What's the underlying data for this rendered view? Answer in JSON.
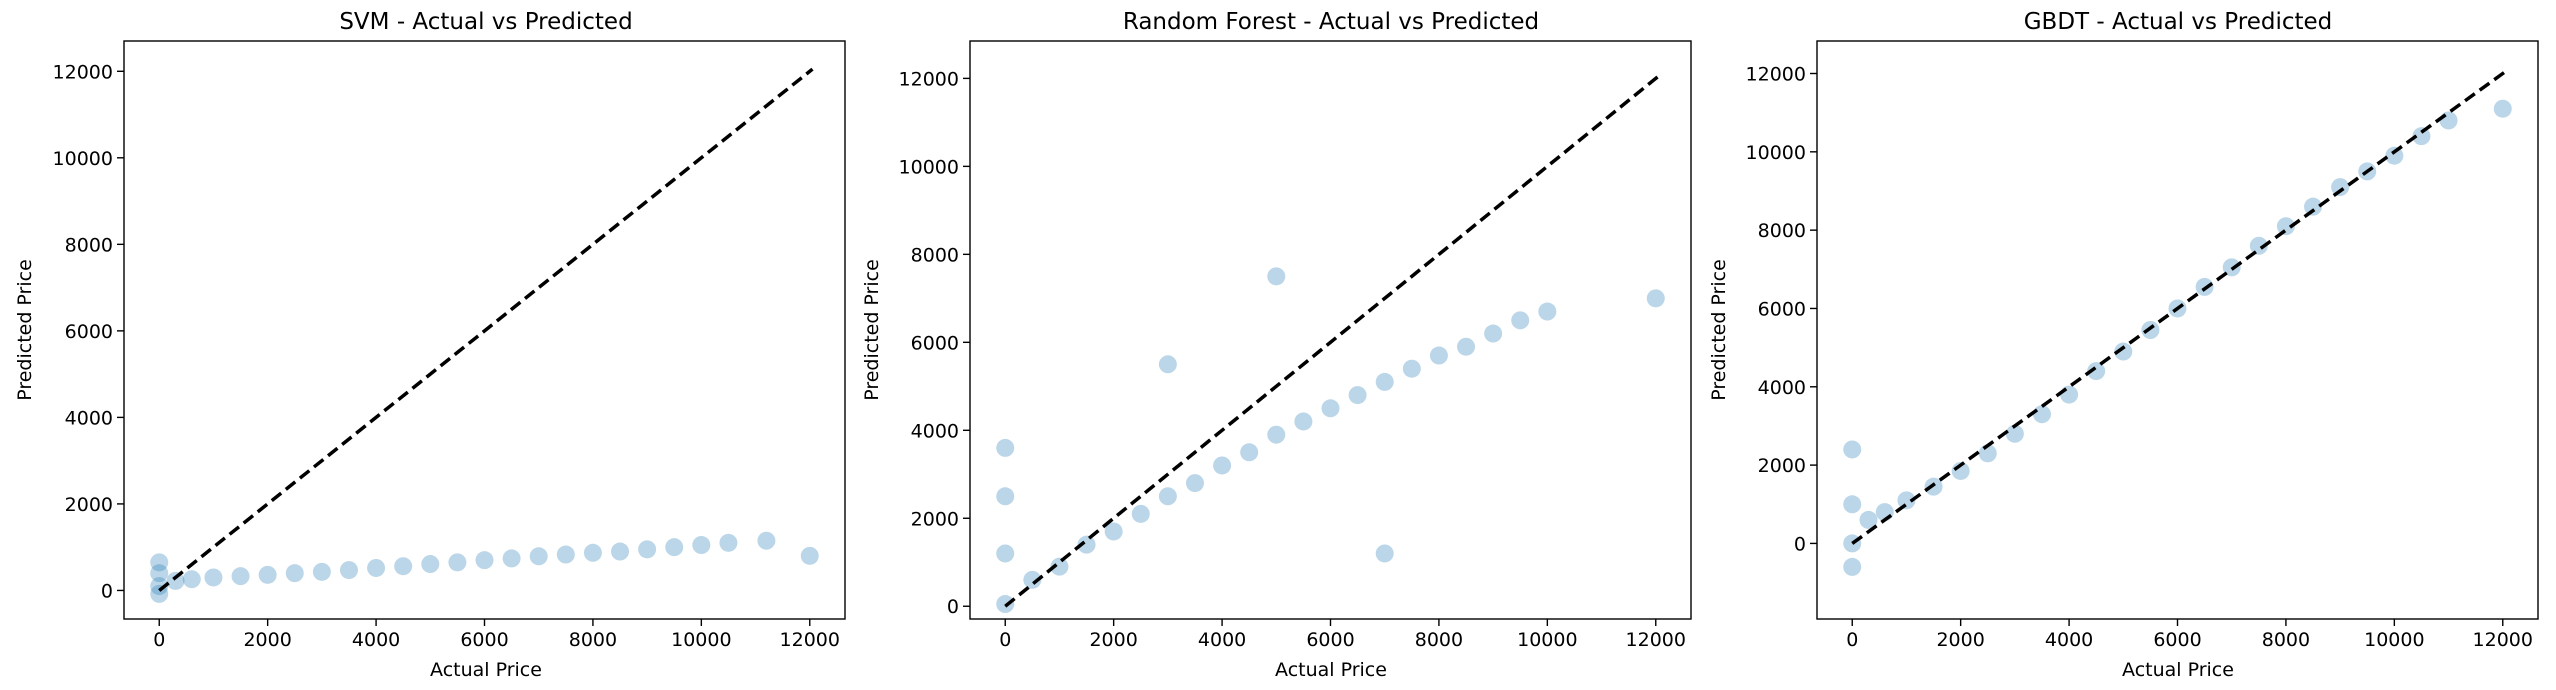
{
  "chart_data": [
    {
      "type": "scatter",
      "title": "SVM - Actual vs Predicted",
      "xlabel": "Actual Price",
      "ylabel": "Predicted Price",
      "xlim": [
        -650,
        12650
      ],
      "ylim": [
        -660,
        12700
      ],
      "xticks": [
        0,
        2000,
        4000,
        6000,
        8000,
        10000,
        12000
      ],
      "yticks": [
        0,
        2000,
        4000,
        6000,
        8000,
        10000,
        12000
      ],
      "reference_line": {
        "from": 0,
        "to": 12050,
        "style": "dashed",
        "color": "#000000"
      },
      "point_color": "#1f77b4",
      "point_alpha": 0.05,
      "series": [
        {
          "values": [
            {
              "x": 0,
              "y": 100
            },
            {
              "x": 0,
              "y": 400
            },
            {
              "x": 0,
              "y": 650
            },
            {
              "x": 0,
              "y": -80
            },
            {
              "x": 300,
              "y": 220
            },
            {
              "x": 600,
              "y": 260
            },
            {
              "x": 1000,
              "y": 300
            },
            {
              "x": 1500,
              "y": 330
            },
            {
              "x": 2000,
              "y": 360
            },
            {
              "x": 2500,
              "y": 400
            },
            {
              "x": 3000,
              "y": 430
            },
            {
              "x": 3500,
              "y": 470
            },
            {
              "x": 4000,
              "y": 520
            },
            {
              "x": 4500,
              "y": 560
            },
            {
              "x": 5000,
              "y": 610
            },
            {
              "x": 5500,
              "y": 650
            },
            {
              "x": 6000,
              "y": 700
            },
            {
              "x": 6500,
              "y": 740
            },
            {
              "x": 7000,
              "y": 790
            },
            {
              "x": 7500,
              "y": 830
            },
            {
              "x": 8000,
              "y": 870
            },
            {
              "x": 8500,
              "y": 900
            },
            {
              "x": 9000,
              "y": 950
            },
            {
              "x": 9500,
              "y": 1000
            },
            {
              "x": 10000,
              "y": 1050
            },
            {
              "x": 10500,
              "y": 1100
            },
            {
              "x": 11200,
              "y": 1150
            },
            {
              "x": 12000,
              "y": 800
            }
          ]
        }
      ]
    },
    {
      "type": "scatter",
      "title": "Random Forest - Actual vs Predicted",
      "xlabel": "Actual Price",
      "ylabel": "Predicted Price",
      "xlim": [
        -650,
        12650
      ],
      "ylim": [
        -290,
        12850
      ],
      "xticks": [
        0,
        2000,
        4000,
        6000,
        8000,
        10000,
        12000
      ],
      "yticks": [
        0,
        2000,
        4000,
        6000,
        8000,
        10000,
        12000
      ],
      "reference_line": {
        "from": 0,
        "to": 12100,
        "style": "dashed",
        "color": "#000000"
      },
      "point_color": "#1f77b4",
      "point_alpha": 0.05,
      "series": [
        {
          "values": [
            {
              "x": 0,
              "y": 50
            },
            {
              "x": 0,
              "y": 1200
            },
            {
              "x": 0,
              "y": 2500
            },
            {
              "x": 0,
              "y": 3600
            },
            {
              "x": 500,
              "y": 600
            },
            {
              "x": 1000,
              "y": 900
            },
            {
              "x": 1500,
              "y": 1400
            },
            {
              "x": 2000,
              "y": 1700
            },
            {
              "x": 2500,
              "y": 2100
            },
            {
              "x": 3000,
              "y": 2500
            },
            {
              "x": 3500,
              "y": 2800
            },
            {
              "x": 4000,
              "y": 3200
            },
            {
              "x": 4500,
              "y": 3500
            },
            {
              "x": 5000,
              "y": 3900
            },
            {
              "x": 5500,
              "y": 4200
            },
            {
              "x": 6000,
              "y": 4500
            },
            {
              "x": 6500,
              "y": 4800
            },
            {
              "x": 7000,
              "y": 5100
            },
            {
              "x": 7500,
              "y": 5400
            },
            {
              "x": 8000,
              "y": 5700
            },
            {
              "x": 8500,
              "y": 5900
            },
            {
              "x": 9000,
              "y": 6200
            },
            {
              "x": 9500,
              "y": 6500
            },
            {
              "x": 10000,
              "y": 6700
            },
            {
              "x": 3000,
              "y": 5500
            },
            {
              "x": 5000,
              "y": 7500
            },
            {
              "x": 7000,
              "y": 1200
            },
            {
              "x": 12000,
              "y": 7000
            }
          ]
        }
      ]
    },
    {
      "type": "scatter",
      "title": "GBDT - Actual vs Predicted",
      "xlabel": "Actual Price",
      "ylabel": "Predicted Price",
      "xlim": [
        -650,
        12650
      ],
      "ylim": [
        -1930,
        12830
      ],
      "xticks": [
        0,
        2000,
        4000,
        6000,
        8000,
        10000,
        12000
      ],
      "yticks": [
        0,
        2000,
        4000,
        6000,
        8000,
        10000,
        12000
      ],
      "reference_line": {
        "from": 0,
        "to": 12100,
        "style": "dashed",
        "color": "#000000"
      },
      "point_color": "#1f77b4",
      "point_alpha": 0.05,
      "series": [
        {
          "values": [
            {
              "x": 0,
              "y": -600
            },
            {
              "x": 0,
              "y": 0
            },
            {
              "x": 0,
              "y": 1000
            },
            {
              "x": 0,
              "y": 2400
            },
            {
              "x": 300,
              "y": 600
            },
            {
              "x": 600,
              "y": 800
            },
            {
              "x": 1000,
              "y": 1100
            },
            {
              "x": 1500,
              "y": 1450
            },
            {
              "x": 2000,
              "y": 1850
            },
            {
              "x": 2500,
              "y": 2300
            },
            {
              "x": 3000,
              "y": 2800
            },
            {
              "x": 3500,
              "y": 3300
            },
            {
              "x": 4000,
              "y": 3800
            },
            {
              "x": 4500,
              "y": 4400
            },
            {
              "x": 5000,
              "y": 4900
            },
            {
              "x": 5500,
              "y": 5450
            },
            {
              "x": 6000,
              "y": 6000
            },
            {
              "x": 6500,
              "y": 6550
            },
            {
              "x": 7000,
              "y": 7050
            },
            {
              "x": 7500,
              "y": 7600
            },
            {
              "x": 8000,
              "y": 8100
            },
            {
              "x": 8500,
              "y": 8600
            },
            {
              "x": 9000,
              "y": 9100
            },
            {
              "x": 9500,
              "y": 9500
            },
            {
              "x": 10000,
              "y": 9900
            },
            {
              "x": 10500,
              "y": 10400
            },
            {
              "x": 11000,
              "y": 10800
            },
            {
              "x": 12000,
              "y": 11100
            }
          ]
        }
      ]
    }
  ]
}
